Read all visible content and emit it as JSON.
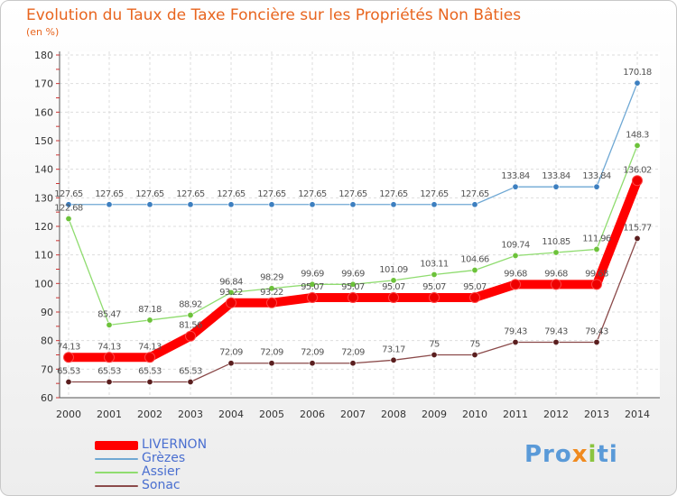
{
  "chart_data": {
    "type": "line",
    "title": "Evolution du Taux de Taxe Foncière sur les Propriétés Non Bâties",
    "ylabel": "(en %)",
    "xlabel": "",
    "ylim": [
      60,
      180
    ],
    "yticks": [
      "60",
      "70",
      "80",
      "90",
      "100",
      "110",
      "120",
      "130",
      "140",
      "150",
      "160",
      "170",
      "180"
    ],
    "categories": [
      "2000",
      "2001",
      "2002",
      "2003",
      "2004",
      "2005",
      "2006",
      "2007",
      "2008",
      "2009",
      "2010",
      "2011",
      "2012",
      "2013",
      "2014"
    ],
    "grid": true,
    "series": [
      {
        "name": "Grèzes",
        "color": "#6fa8d4",
        "marker": "#3d7fc0",
        "values": [
          127.65,
          127.65,
          127.65,
          127.65,
          127.65,
          127.65,
          127.65,
          127.65,
          127.65,
          127.65,
          127.65,
          133.84,
          133.84,
          133.84,
          170.18
        ],
        "labels": [
          "127.65",
          "127.65",
          "127.65",
          "127.65",
          "127.65",
          "127.65",
          "127.65",
          "127.65",
          "127.65",
          "127.65",
          "127.65",
          "133.84",
          "133.84",
          "133.84",
          "170.18"
        ]
      },
      {
        "name": "Assier",
        "color": "#8fdc6f",
        "marker": "#6cc23a",
        "values": [
          122.68,
          85.47,
          87.18,
          88.92,
          96.84,
          98.29,
          99.69,
          99.69,
          101.09,
          103.11,
          104.66,
          109.74,
          110.85,
          111.96,
          148.3
        ],
        "labels": [
          "122.68",
          "85.47",
          "87.18",
          "88.92",
          "96.84",
          "98.29",
          "99.69",
          "99.69",
          "101.09",
          "103.11",
          "104.66",
          "109.74",
          "110.85",
          "111.96",
          "148.3"
        ]
      },
      {
        "name": "Sonac",
        "color": "#8b4a4a",
        "marker": "#5a1e1e",
        "values": [
          65.53,
          65.53,
          65.53,
          65.53,
          72.09,
          72.09,
          72.09,
          72.09,
          73.17,
          75,
          75,
          79.43,
          79.43,
          79.43,
          115.77
        ],
        "labels": [
          "65.53",
          "65.53",
          "65.53",
          "65.53",
          "72.09",
          "72.09",
          "72.09",
          "72.09",
          "73.17",
          "75",
          "75",
          "79.43",
          "79.43",
          "79.43",
          "115.77"
        ]
      },
      {
        "name": "LIVERNON",
        "color": "#ff0000",
        "marker": "#ee0000",
        "values": [
          74.13,
          74.13,
          74.13,
          81.56,
          93.22,
          93.22,
          95.07,
          95.07,
          95.07,
          95.07,
          95.07,
          99.68,
          99.68,
          99.68,
          136.02
        ],
        "labels": [
          "74.13",
          "74.13",
          "74.13",
          "81.56",
          "93.22",
          "93.22",
          "95.07",
          "95.07",
          "95.07",
          "95.07",
          "95.07",
          "99.68",
          "99.68",
          "99.68",
          "136.02"
        ]
      }
    ],
    "legend": [
      {
        "name": "LIVERNON",
        "color": "#ff0000"
      },
      {
        "name": "Grèzes",
        "color": "#6fa8d4"
      },
      {
        "name": "Assier",
        "color": "#8fdc6f"
      },
      {
        "name": "Sonac",
        "color": "#8b4a4a"
      }
    ]
  },
  "branding": {
    "logo_text": "Proxiti"
  }
}
